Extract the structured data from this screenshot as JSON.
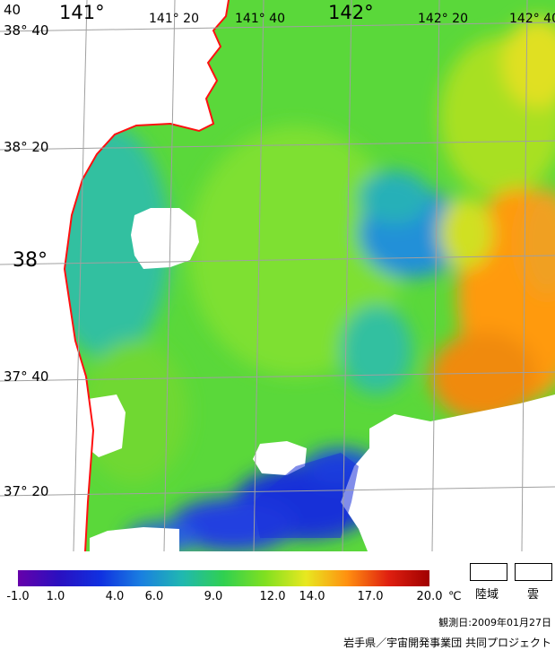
{
  "map": {
    "lat_labels": [
      "38° 40",
      "38° 20",
      "38°",
      "37° 40",
      "37° 20"
    ],
    "lon_labels": [
      "141°",
      "141° 20",
      "141° 40",
      "142°",
      "142° 20",
      "142° 40"
    ],
    "corner_label": "40",
    "colors": {
      "land": "#ffffff",
      "coast": "#ff1010",
      "grid": "#a0a0a0"
    }
  },
  "legend": {
    "ticks": [
      "-1.0",
      "1.0",
      "4.0",
      "6.0",
      "9.0",
      "12.0",
      "14.0",
      "17.0",
      "20.0"
    ],
    "unit": "℃",
    "land_label": "陸域",
    "cloud_label": "雲",
    "colors": [
      "#6600aa",
      "#2a10c0",
      "#1030e0",
      "#1a80e0",
      "#20b8b0",
      "#30d050",
      "#80e020",
      "#e8e820",
      "#ff9010",
      "#e02010",
      "#a00000"
    ]
  },
  "date_text": "観測日:2009年01月27日",
  "credit_text": "岩手県／宇宙開発事業団 共同プロジェクト"
}
